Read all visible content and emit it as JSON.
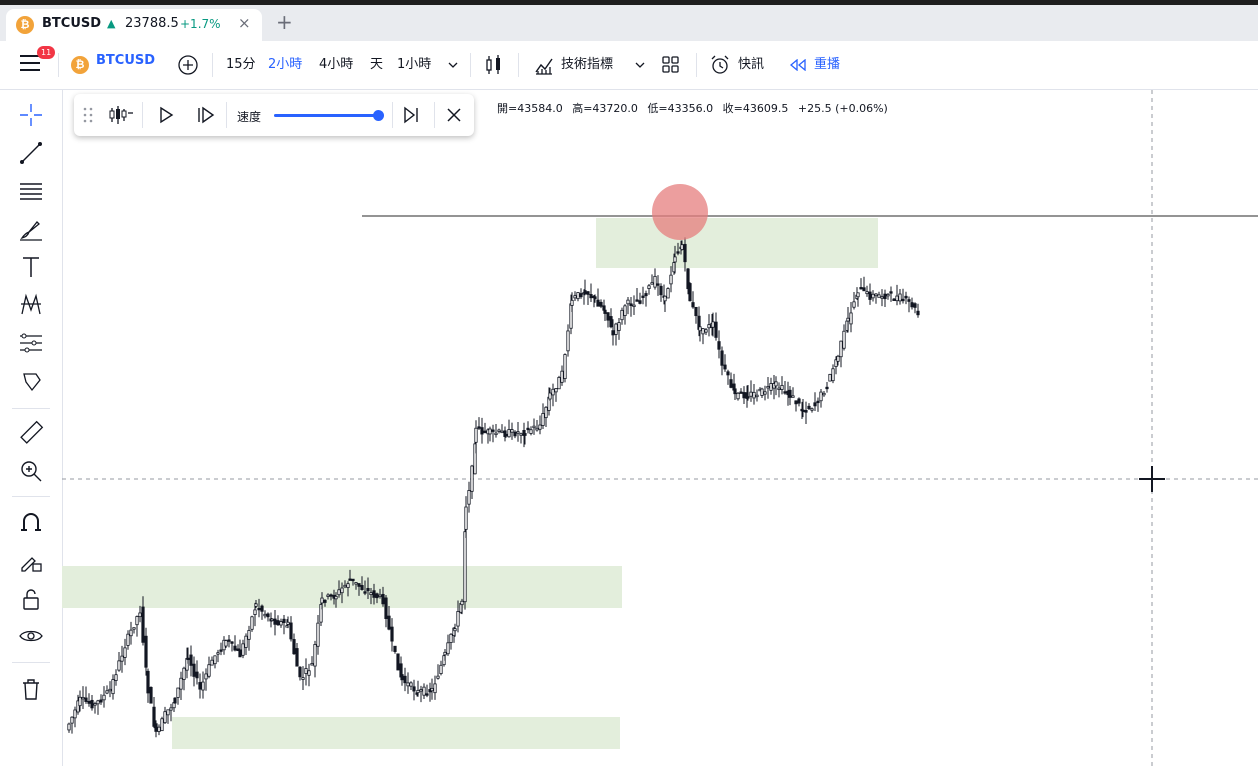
{
  "tab": {
    "coin_glyph": "₿",
    "symbol": "BTCUSD",
    "arrow": "▲",
    "price": "23788.5",
    "change": "+1.7%",
    "close": "×",
    "add": "+"
  },
  "toolbar": {
    "badge": "11",
    "coin_glyph": "₿",
    "symbol": "BTCUSD",
    "intervals": [
      "15分",
      "2小時",
      "4小時",
      "天",
      "1小時"
    ],
    "selected_interval": "2小時",
    "indicators_label": "技術指標",
    "alert_label": "快訊",
    "replay_label": "重播",
    "accent_color": "#2962ff"
  },
  "replay_bar": {
    "speed_label": "速度",
    "speed_value": 1.0
  },
  "ohlc": {
    "open": "開=43584.0",
    "high": "高=43720.0",
    "low": "低=43356.0",
    "close": "收=43609.5",
    "change": "+25.5 (+0.06%)"
  },
  "icons": {
    "left_toolbar": [
      "crosshair-icon",
      "trend-line-icon",
      "fib-lines-icon",
      "brush-icon",
      "text-icon",
      "pattern-icon",
      "measure-icon",
      "price-label-icon",
      "ruler-icon",
      "zoom-in-icon",
      "magnet-icon",
      "lock-drawing-icon",
      "lock-icon",
      "eye-icon",
      "trash-icon"
    ]
  },
  "colors": {
    "zone": "#e3eedc",
    "highlight": "#e67e7e",
    "candle": "#131722"
  }
}
